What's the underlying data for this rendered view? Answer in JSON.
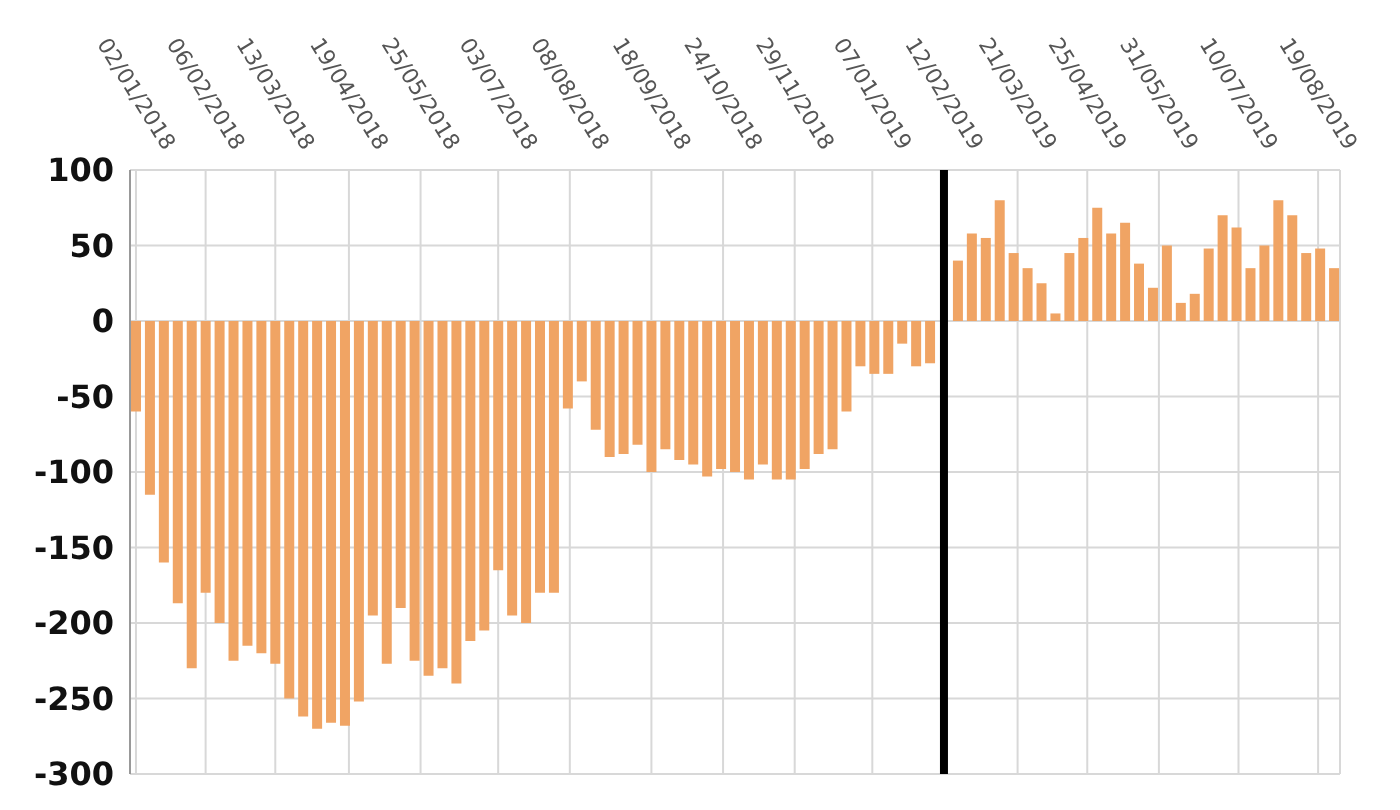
{
  "chart_data": {
    "type": "bar",
    "color": "#f0a464",
    "x": [
      "2018-01-02",
      "2018-01-09",
      "2018-01-16",
      "2018-01-23",
      "2018-01-30",
      "2018-02-06",
      "2018-02-13",
      "2018-02-20",
      "2018-02-27",
      "2018-03-06",
      "2018-03-13",
      "2018-03-20",
      "2018-03-27",
      "2018-04-03",
      "2018-04-10",
      "2018-04-17",
      "2018-04-24",
      "2018-05-01",
      "2018-05-08",
      "2018-05-15",
      "2018-05-22",
      "2018-05-29",
      "2018-06-05",
      "2018-06-12",
      "2018-06-19",
      "2018-06-26",
      "2018-07-03",
      "2018-07-10",
      "2018-07-17",
      "2018-07-24",
      "2018-07-31",
      "2018-08-07",
      "2018-08-14",
      "2018-08-21",
      "2018-08-28",
      "2018-09-04",
      "2018-09-11",
      "2018-09-18",
      "2018-09-25",
      "2018-10-02",
      "2018-10-09",
      "2018-10-16",
      "2018-10-23",
      "2018-10-30",
      "2018-11-06",
      "2018-11-13",
      "2018-11-20",
      "2018-11-27",
      "2018-12-04",
      "2018-12-11",
      "2018-12-18",
      "2018-12-25",
      "2019-01-01",
      "2019-01-08",
      "2019-01-15",
      "2019-01-22",
      "2019-01-29",
      "2019-02-05",
      "2019-02-19",
      "2019-02-26",
      "2019-03-05",
      "2019-03-12",
      "2019-03-19",
      "2019-03-26",
      "2019-04-02",
      "2019-04-09",
      "2019-04-16",
      "2019-04-23",
      "2019-04-30",
      "2019-05-07",
      "2019-05-14",
      "2019-05-21",
      "2019-05-28",
      "2019-06-04",
      "2019-06-11",
      "2019-06-18",
      "2019-06-25",
      "2019-07-02",
      "2019-07-09",
      "2019-07-16",
      "2019-07-23",
      "2019-07-30",
      "2019-08-06",
      "2019-08-13",
      "2019-08-20",
      "2019-08-27"
    ],
    "values": [
      -60,
      -115,
      -160,
      -187,
      -230,
      -180,
      -200,
      -225,
      -215,
      -220,
      -227,
      -250,
      -262,
      -270,
      -266,
      -268,
      -252,
      -195,
      -227,
      -190,
      -225,
      -235,
      -230,
      -240,
      -212,
      -205,
      -165,
      -195,
      -200,
      -180,
      -180,
      -58,
      -40,
      -72,
      -90,
      -88,
      -82,
      -100,
      -85,
      -92,
      -95,
      -103,
      -98,
      -100,
      -105,
      -95,
      -105,
      -105,
      -98,
      -88,
      -85,
      -60,
      -30,
      -35,
      -35,
      -15,
      -30,
      -28,
      40,
      58,
      55,
      80,
      45,
      35,
      25,
      5,
      45,
      55,
      75,
      58,
      65,
      38,
      22,
      50,
      12,
      18,
      48,
      70,
      62,
      35,
      50,
      80,
      70,
      45,
      48,
      35
    ],
    "xlim": [
      "2017-12-30",
      "2019-08-30"
    ],
    "xticks": [
      {
        "value": "2018-01-02",
        "label": "02/01/2018"
      },
      {
        "value": "2018-02-06",
        "label": "06/02/2018"
      },
      {
        "value": "2018-03-13",
        "label": "13/03/2018"
      },
      {
        "value": "2018-04-19",
        "label": "19/04/2018"
      },
      {
        "value": "2018-05-25",
        "label": "25/05/2018"
      },
      {
        "value": "2018-07-03",
        "label": "03/07/2018"
      },
      {
        "value": "2018-08-08",
        "label": "08/08/2018"
      },
      {
        "value": "2018-09-18",
        "label": "18/09/2018"
      },
      {
        "value": "2018-10-24",
        "label": "24/10/2018"
      },
      {
        "value": "2018-11-29",
        "label": "29/11/2018"
      },
      {
        "value": "2019-01-07",
        "label": "07/01/2019"
      },
      {
        "value": "2019-02-12",
        "label": "12/02/2019"
      },
      {
        "value": "2019-03-21",
        "label": "21/03/2019"
      },
      {
        "value": "2019-04-25",
        "label": "25/04/2019"
      },
      {
        "value": "2019-05-31",
        "label": "31/05/2019"
      },
      {
        "value": "2019-07-10",
        "label": "10/07/2019"
      },
      {
        "value": "2019-08-19",
        "label": "19/08/2019"
      }
    ],
    "ylim": [
      -300,
      100
    ],
    "yticks": [
      -300,
      -250,
      -200,
      -150,
      -100,
      -50,
      0,
      50,
      100
    ],
    "grid": true,
    "ref_lines": [
      {
        "axis": "x",
        "value": "2019-02-12",
        "color": "#000000"
      }
    ]
  }
}
